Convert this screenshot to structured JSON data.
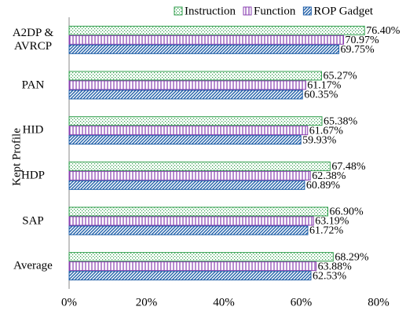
{
  "chart_data": {
    "type": "hbar",
    "y_label": "Kept Profile",
    "categories": [
      "A2DP & AVRCP",
      "PAN",
      "HID",
      "HDP",
      "SAP",
      "Average"
    ],
    "series": [
      {
        "name": "Instruction",
        "color": "#2e9e4a",
        "pattern": "dots",
        "values": [
          76.4,
          65.27,
          65.38,
          67.48,
          66.9,
          68.29
        ],
        "value_labels": [
          "76.40%",
          "65.27%",
          "65.38%",
          "67.48%",
          "66.90%",
          "68.29%"
        ]
      },
      {
        "name": "Function",
        "color": "#8a3fb0",
        "pattern": "vertical",
        "values": [
          70.97,
          61.17,
          61.67,
          62.38,
          63.19,
          63.88
        ],
        "value_labels": [
          "70.97%",
          "61.17%",
          "61.67%",
          "62.38%",
          "63.19%",
          "63.88%"
        ]
      },
      {
        "name": "ROP Gadget",
        "color": "#1f5fa8",
        "pattern": "diagonal",
        "values": [
          69.75,
          60.35,
          59.93,
          60.89,
          61.72,
          62.53
        ],
        "value_labels": [
          "69.75%",
          "60.35%",
          "59.93%",
          "60.89%",
          "61.72%",
          "62.53%"
        ]
      }
    ],
    "xlim": [
      0,
      80
    ],
    "xticks": [
      {
        "value": 0,
        "label": "0%"
      },
      {
        "value": 20,
        "label": "20%"
      },
      {
        "value": 40,
        "label": "40%"
      },
      {
        "value": 60,
        "label": "60%"
      },
      {
        "value": 80,
        "label": "80%"
      }
    ],
    "legend": "top"
  }
}
